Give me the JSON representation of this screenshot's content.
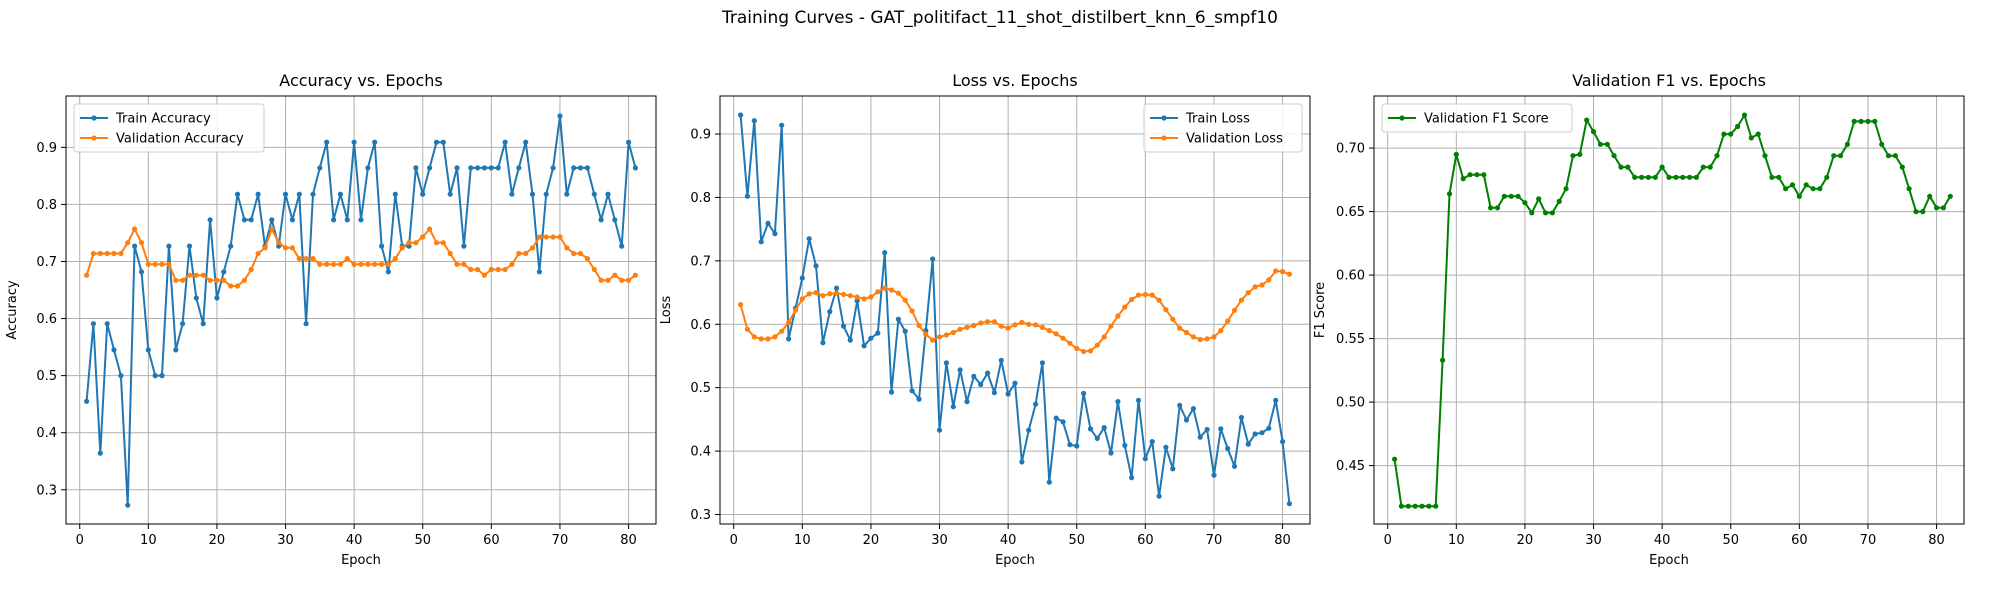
{
  "figure": {
    "title": "Training Curves - GAT_politifact_11_shot_distilbert_knn_6_smpf10"
  },
  "colors": {
    "blue": "#1f77b4",
    "orange": "#ff7f0e",
    "green": "#008000",
    "grid": "#b0b0b0"
  },
  "chart_data": [
    {
      "type": "line",
      "title": "Accuracy vs. Epochs",
      "xlabel": "Epoch",
      "ylabel": "Accuracy",
      "xlim": [
        -2,
        84
      ],
      "ylim": [
        0.24,
        0.99
      ],
      "xticks": [
        0,
        10,
        20,
        30,
        40,
        50,
        60,
        70,
        80
      ],
      "yticks": [
        0.3,
        0.4,
        0.5,
        0.6,
        0.7,
        0.8,
        0.9
      ],
      "grid": true,
      "legend": "top-left",
      "x_start": 1,
      "series": [
        {
          "name": "Train Accuracy",
          "color": "#1f77b4",
          "values": [
            0.455,
            0.591,
            0.364,
            0.591,
            0.545,
            0.5,
            0.273,
            0.727,
            0.682,
            0.545,
            0.5,
            0.5,
            0.727,
            0.545,
            0.591,
            0.727,
            0.636,
            0.591,
            0.773,
            0.636,
            0.682,
            0.727,
            0.818,
            0.773,
            0.773,
            0.818,
            0.727,
            0.773,
            0.727,
            0.818,
            0.773,
            0.818,
            0.591,
            0.818,
            0.864,
            0.909,
            0.773,
            0.818,
            0.773,
            0.909,
            0.773,
            0.864,
            0.909,
            0.727,
            0.682,
            0.818,
            0.727,
            0.727,
            0.864,
            0.818,
            0.864,
            0.909,
            0.909,
            0.818,
            0.864,
            0.727,
            0.864,
            0.864,
            0.864,
            0.864,
            0.864,
            0.909,
            0.818,
            0.864,
            0.909,
            0.818,
            0.682,
            0.818,
            0.864,
            0.955,
            0.818,
            0.864,
            0.864,
            0.864,
            0.818,
            0.773,
            0.818,
            0.773,
            0.727,
            0.909,
            0.864
          ]
        },
        {
          "name": "Validation Accuracy",
          "color": "#ff7f0e",
          "values": [
            0.676,
            0.714,
            0.714,
            0.714,
            0.714,
            0.714,
            0.733,
            0.757,
            0.733,
            0.695,
            0.695,
            0.695,
            0.695,
            0.667,
            0.667,
            0.676,
            0.676,
            0.676,
            0.667,
            0.667,
            0.667,
            0.657,
            0.657,
            0.667,
            0.686,
            0.714,
            0.724,
            0.757,
            0.733,
            0.724,
            0.724,
            0.705,
            0.705,
            0.705,
            0.695,
            0.695,
            0.695,
            0.695,
            0.705,
            0.695,
            0.695,
            0.695,
            0.695,
            0.695,
            0.695,
            0.705,
            0.724,
            0.733,
            0.733,
            0.743,
            0.757,
            0.733,
            0.733,
            0.714,
            0.695,
            0.695,
            0.686,
            0.686,
            0.676,
            0.686,
            0.686,
            0.686,
            0.695,
            0.714,
            0.714,
            0.724,
            0.743,
            0.743,
            0.743,
            0.743,
            0.724,
            0.714,
            0.714,
            0.705,
            0.686,
            0.667,
            0.667,
            0.676,
            0.667,
            0.667,
            0.676
          ]
        }
      ]
    },
    {
      "type": "line",
      "title": "Loss vs. Epochs",
      "xlabel": "Epoch",
      "ylabel": "Loss",
      "xlim": [
        -2,
        84
      ],
      "ylim": [
        0.285,
        0.96
      ],
      "xticks": [
        0,
        10,
        20,
        30,
        40,
        50,
        60,
        70,
        80
      ],
      "yticks": [
        0.3,
        0.4,
        0.5,
        0.6,
        0.7,
        0.8,
        0.9
      ],
      "grid": true,
      "legend": "top-right",
      "x_start": 1,
      "series": [
        {
          "name": "Train Loss",
          "color": "#1f77b4",
          "values": [
            0.93,
            0.802,
            0.921,
            0.73,
            0.759,
            0.743,
            0.914,
            0.577,
            0.625,
            0.673,
            0.735,
            0.692,
            0.571,
            0.62,
            0.657,
            0.597,
            0.575,
            0.637,
            0.566,
            0.578,
            0.586,
            0.713,
            0.493,
            0.608,
            0.589,
            0.495,
            0.482,
            0.59,
            0.703,
            0.433,
            0.539,
            0.47,
            0.528,
            0.478,
            0.518,
            0.505,
            0.523,
            0.492,
            0.543,
            0.49,
            0.507,
            0.383,
            0.433,
            0.474,
            0.539,
            0.351,
            0.452,
            0.446,
            0.41,
            0.408,
            0.491,
            0.435,
            0.42,
            0.437,
            0.397,
            0.478,
            0.409,
            0.358,
            0.48,
            0.388,
            0.415,
            0.329,
            0.406,
            0.372,
            0.472,
            0.449,
            0.467,
            0.422,
            0.434,
            0.362,
            0.435,
            0.404,
            0.376,
            0.453,
            0.411,
            0.427,
            0.429,
            0.436,
            0.48,
            0.415,
            0.317
          ]
        },
        {
          "name": "Validation Loss",
          "color": "#ff7f0e",
          "values": [
            0.631,
            0.592,
            0.58,
            0.577,
            0.577,
            0.58,
            0.589,
            0.603,
            0.622,
            0.64,
            0.648,
            0.65,
            0.645,
            0.648,
            0.649,
            0.647,
            0.645,
            0.643,
            0.64,
            0.643,
            0.651,
            0.657,
            0.654,
            0.649,
            0.638,
            0.621,
            0.598,
            0.584,
            0.575,
            0.58,
            0.583,
            0.587,
            0.592,
            0.595,
            0.598,
            0.602,
            0.604,
            0.604,
            0.597,
            0.594,
            0.599,
            0.603,
            0.6,
            0.599,
            0.595,
            0.59,
            0.585,
            0.578,
            0.57,
            0.562,
            0.557,
            0.558,
            0.567,
            0.58,
            0.597,
            0.613,
            0.627,
            0.639,
            0.646,
            0.647,
            0.646,
            0.638,
            0.623,
            0.608,
            0.594,
            0.587,
            0.58,
            0.576,
            0.577,
            0.58,
            0.59,
            0.605,
            0.622,
            0.638,
            0.65,
            0.659,
            0.662,
            0.67,
            0.684,
            0.683,
            0.679
          ]
        }
      ]
    },
    {
      "type": "line",
      "title": "Validation F1 vs. Epochs",
      "xlabel": "Epoch",
      "ylabel": "F1 Score",
      "xlim": [
        -2,
        84
      ],
      "ylim": [
        0.404,
        0.741
      ],
      "xticks": [
        0,
        10,
        20,
        30,
        40,
        50,
        60,
        70,
        80
      ],
      "yticks": [
        0.45,
        0.5,
        0.55,
        0.6,
        0.65,
        0.7
      ],
      "grid": true,
      "legend": "top-left",
      "x_start": 1,
      "series": [
        {
          "name": "Validation F1 Score",
          "color": "#008000",
          "values": [
            0.455,
            0.418,
            0.418,
            0.418,
            0.418,
            0.418,
            0.418,
            0.533,
            0.664,
            0.695,
            0.676,
            0.679,
            0.679,
            0.679,
            0.653,
            0.653,
            0.662,
            0.662,
            0.662,
            0.657,
            0.649,
            0.66,
            0.649,
            0.649,
            0.658,
            0.668,
            0.694,
            0.695,
            0.722,
            0.713,
            0.703,
            0.703,
            0.694,
            0.685,
            0.685,
            0.677,
            0.677,
            0.677,
            0.677,
            0.685,
            0.677,
            0.677,
            0.677,
            0.677,
            0.677,
            0.685,
            0.685,
            0.694,
            0.711,
            0.711,
            0.717,
            0.726,
            0.708,
            0.711,
            0.694,
            0.677,
            0.677,
            0.668,
            0.671,
            0.662,
            0.671,
            0.668,
            0.668,
            0.677,
            0.694,
            0.694,
            0.703,
            0.721,
            0.721,
            0.721,
            0.721,
            0.703,
            0.694,
            0.694,
            0.685,
            0.668,
            0.65,
            0.65,
            0.662,
            0.653,
            0.653,
            0.662
          ]
        }
      ]
    }
  ]
}
